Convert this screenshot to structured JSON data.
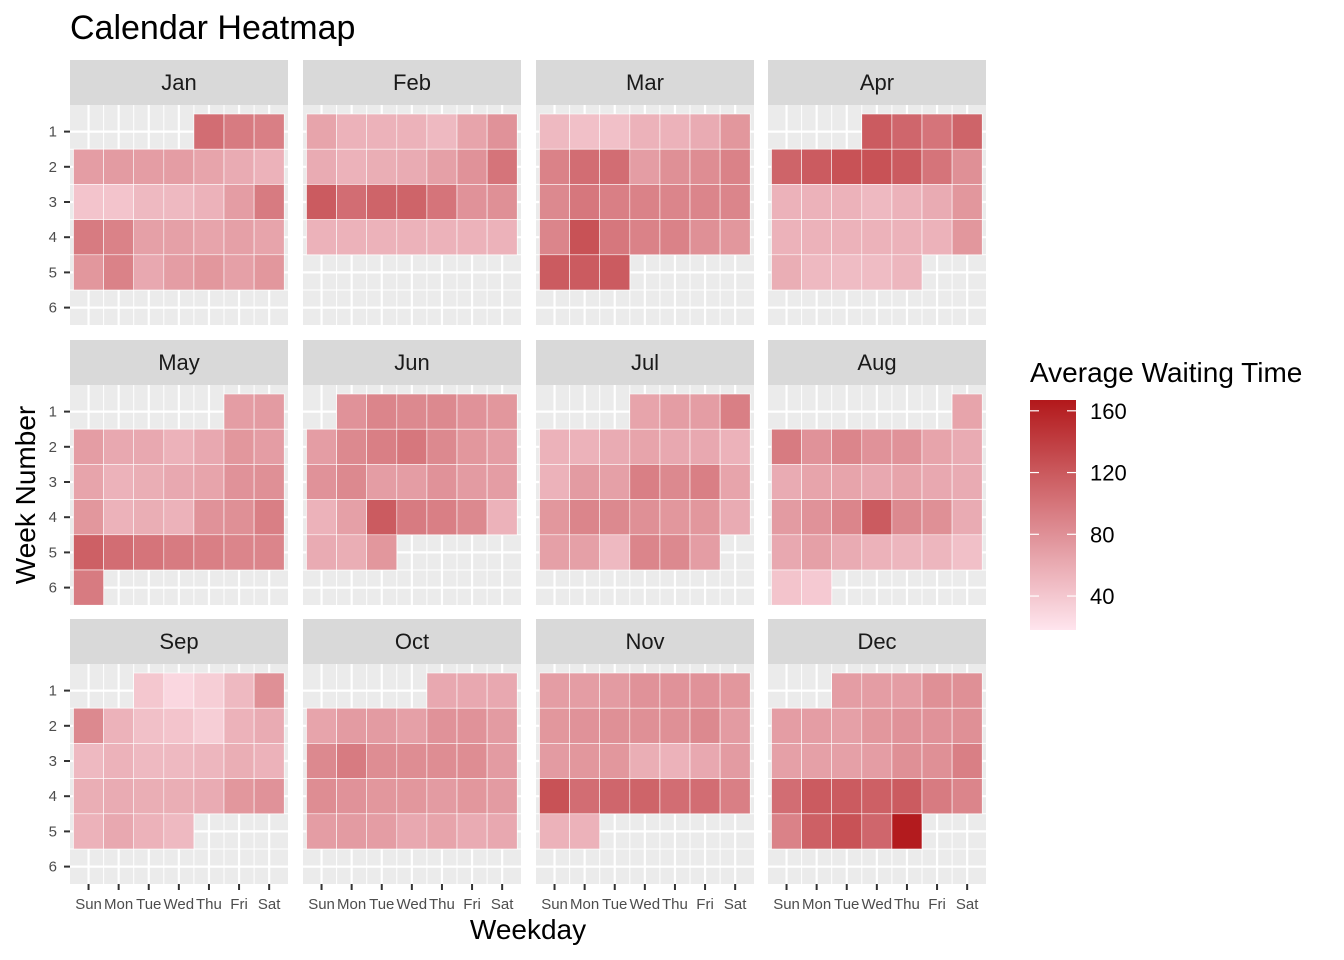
{
  "chart_data": {
    "type": "heatmap",
    "title": "Calendar Heatmap",
    "xlabel": "Weekday",
    "ylabel": "Week Number",
    "weekdays": [
      "Sun",
      "Mon",
      "Tue",
      "Wed",
      "Thu",
      "Fri",
      "Sat"
    ],
    "weeks": [
      1,
      2,
      3,
      4,
      5,
      6
    ],
    "legend": {
      "title": "Average Waiting Time",
      "breaks": [
        160,
        120,
        80,
        40
      ],
      "range": [
        18,
        167
      ],
      "low_color": "#ffe5ee",
      "high_color": "#b2181b",
      "position": "right"
    },
    "months": [
      {
        "name": "Jan",
        "weeks": [
          [
            null,
            null,
            null,
            null,
            105,
            95,
            92
          ],
          [
            70,
            72,
            70,
            70,
            65,
            60,
            55
          ],
          [
            42,
            42,
            50,
            50,
            55,
            70,
            95
          ],
          [
            95,
            90,
            68,
            68,
            65,
            68,
            65
          ],
          [
            75,
            90,
            62,
            70,
            75,
            68,
            75
          ]
        ]
      },
      {
        "name": "Feb",
        "weeks": [
          [
            65,
            55,
            55,
            55,
            50,
            65,
            78
          ],
          [
            60,
            55,
            58,
            60,
            68,
            78,
            100
          ],
          [
            118,
            105,
            112,
            112,
            100,
            78,
            80
          ],
          [
            55,
            55,
            55,
            55,
            55,
            55,
            55
          ]
        ]
      },
      {
        "name": "Mar",
        "weeks": [
          [
            50,
            45,
            45,
            55,
            55,
            60,
            75
          ],
          [
            90,
            105,
            105,
            70,
            80,
            82,
            90
          ],
          [
            85,
            98,
            92,
            90,
            88,
            88,
            88
          ],
          [
            88,
            125,
            98,
            90,
            90,
            80,
            75
          ],
          [
            118,
            118,
            118
          ]
        ]
      },
      {
        "name": "Apr",
        "weeks": [
          [
            null,
            null,
            null,
            118,
            110,
            100,
            112
          ],
          [
            112,
            118,
            125,
            125,
            118,
            100,
            80
          ],
          [
            55,
            55,
            55,
            50,
            55,
            60,
            75
          ],
          [
            55,
            55,
            55,
            55,
            55,
            55,
            75
          ],
          [
            58,
            50,
            48,
            48,
            52
          ]
        ]
      },
      {
        "name": "May",
        "weeks": [
          [
            null,
            null,
            null,
            null,
            null,
            70,
            72
          ],
          [
            70,
            62,
            62,
            55,
            62,
            75,
            70
          ],
          [
            65,
            55,
            58,
            62,
            65,
            78,
            80
          ],
          [
            75,
            55,
            58,
            55,
            78,
            80,
            92
          ],
          [
            115,
            105,
            100,
            95,
            92,
            88,
            88
          ],
          [
            95
          ]
        ]
      },
      {
        "name": "Jun",
        "weeks": [
          [
            null,
            78,
            88,
            85,
            85,
            78,
            75
          ],
          [
            70,
            85,
            92,
            98,
            85,
            75,
            70
          ],
          [
            78,
            85,
            70,
            70,
            78,
            72,
            70
          ],
          [
            55,
            68,
            118,
            95,
            92,
            85,
            55
          ],
          [
            60,
            58,
            75
          ]
        ]
      },
      {
        "name": "Jul",
        "weeks": [
          [
            null,
            null,
            null,
            65,
            70,
            70,
            92
          ],
          [
            55,
            55,
            60,
            65,
            62,
            62,
            55
          ],
          [
            55,
            72,
            68,
            92,
            85,
            92,
            65
          ],
          [
            75,
            88,
            85,
            80,
            75,
            75,
            60
          ],
          [
            68,
            68,
            50,
            88,
            85,
            70
          ]
        ]
      },
      {
        "name": "Aug",
        "weeks": [
          [
            null,
            null,
            null,
            null,
            null,
            null,
            65
          ],
          [
            95,
            78,
            88,
            78,
            78,
            65,
            60
          ],
          [
            60,
            65,
            65,
            62,
            65,
            62,
            60
          ],
          [
            72,
            78,
            88,
            118,
            85,
            80,
            60
          ],
          [
            62,
            68,
            60,
            55,
            52,
            52,
            45
          ],
          [
            42,
            38
          ]
        ]
      },
      {
        "name": "Sep",
        "weeks": [
          [
            null,
            null,
            40,
            28,
            35,
            50,
            80
          ],
          [
            85,
            55,
            45,
            42,
            35,
            55,
            60
          ],
          [
            50,
            55,
            50,
            50,
            52,
            58,
            55
          ],
          [
            58,
            60,
            58,
            58,
            60,
            75,
            78
          ],
          [
            55,
            62,
            55,
            50
          ]
        ]
      },
      {
        "name": "Oct",
        "weeks": [
          [
            null,
            null,
            null,
            null,
            62,
            62,
            62
          ],
          [
            65,
            72,
            72,
            68,
            78,
            78,
            72
          ],
          [
            85,
            95,
            82,
            82,
            82,
            82,
            72
          ],
          [
            82,
            78,
            75,
            75,
            72,
            75,
            72
          ],
          [
            70,
            72,
            70,
            62,
            65,
            60,
            62
          ]
        ]
      },
      {
        "name": "Nov",
        "weeks": [
          [
            70,
            70,
            72,
            78,
            78,
            78,
            75
          ],
          [
            75,
            78,
            80,
            80,
            80,
            85,
            72
          ],
          [
            72,
            75,
            75,
            58,
            55,
            62,
            72
          ],
          [
            125,
            105,
            110,
            112,
            105,
            105,
            92
          ],
          [
            55,
            55
          ]
        ]
      },
      {
        "name": "Dec",
        "weeks": [
          [
            null,
            null,
            70,
            70,
            70,
            80,
            80
          ],
          [
            70,
            70,
            68,
            75,
            78,
            78,
            80
          ],
          [
            68,
            68,
            68,
            70,
            80,
            80,
            92
          ],
          [
            105,
            118,
            118,
            115,
            118,
            95,
            88
          ],
          [
            90,
            115,
            125,
            110,
            165
          ]
        ]
      }
    ]
  }
}
